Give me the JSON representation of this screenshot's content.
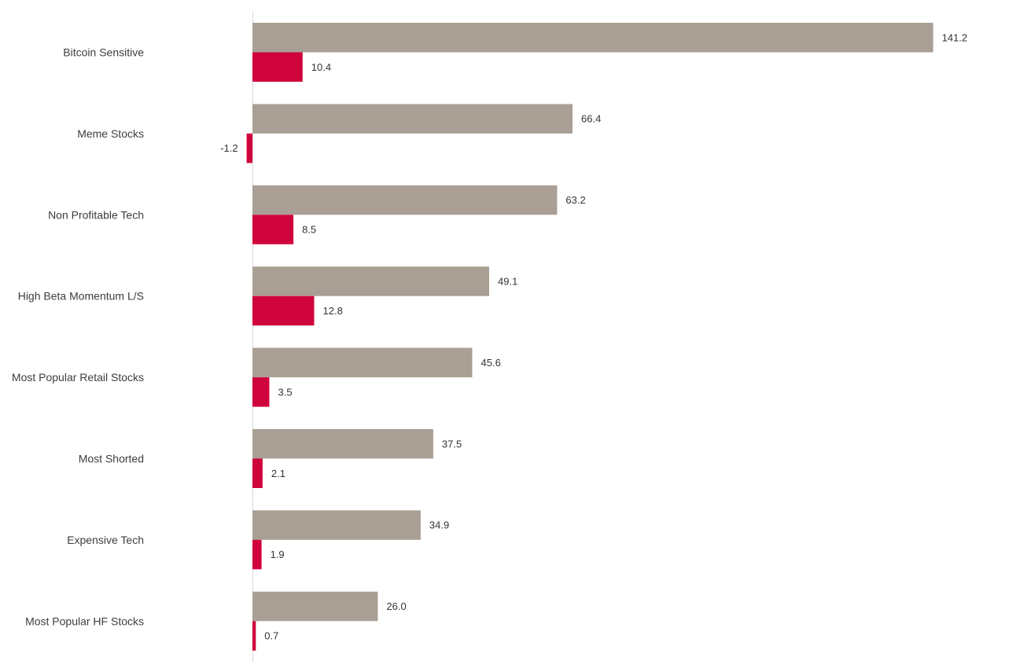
{
  "chart_data": {
    "type": "bar",
    "orientation": "horizontal",
    "categories": [
      "Bitcoin Sensitive",
      "Meme Stocks",
      "Non Profitable Tech",
      "High Beta Momentum L/S",
      "Most Popular Retail Stocks",
      "Most Shorted",
      "Expensive Tech",
      "Most Popular HF Stocks"
    ],
    "series": [
      {
        "values": [
          141.2,
          66.4,
          63.2,
          49.1,
          45.6,
          37.5,
          34.9,
          26.0
        ],
        "color": "#a99f94"
      },
      {
        "values": [
          10.4,
          -1.2,
          8.5,
          12.8,
          3.5,
          2.1,
          1.9,
          0.7
        ],
        "color": "#d0043c"
      }
    ],
    "value_labels": [
      [
        "141.2",
        "66.4",
        "63.2",
        "49.1",
        "45.6",
        "37.5",
        "34.9",
        "26.0"
      ],
      [
        "10.4",
        "-1.2",
        "8.5",
        "12.8",
        "3.5",
        "2.1",
        "1.9",
        "0.7"
      ]
    ],
    "title": "",
    "xlabel": "",
    "ylabel": "",
    "grid": false,
    "legend": "none"
  }
}
